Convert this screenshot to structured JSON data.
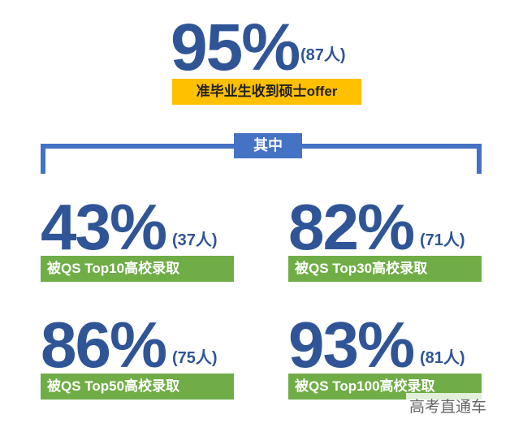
{
  "headline": {
    "percent": "95%",
    "count": "(87人)",
    "label": "准毕业生收到硕士offer"
  },
  "divider": {
    "label": "其中"
  },
  "items": [
    {
      "percent": "43%",
      "count": "(37人)",
      "label": "被QS Top10高校录取"
    },
    {
      "percent": "82%",
      "count": "(71人)",
      "label": "被QS Top30高校录取"
    },
    {
      "percent": "86%",
      "count": "(75人)",
      "label": "被QS Top50高校录取"
    },
    {
      "percent": "93%",
      "count": "(81人)",
      "label": "被QS Top100高校录取"
    }
  ],
  "watermark": "高考直通车"
}
